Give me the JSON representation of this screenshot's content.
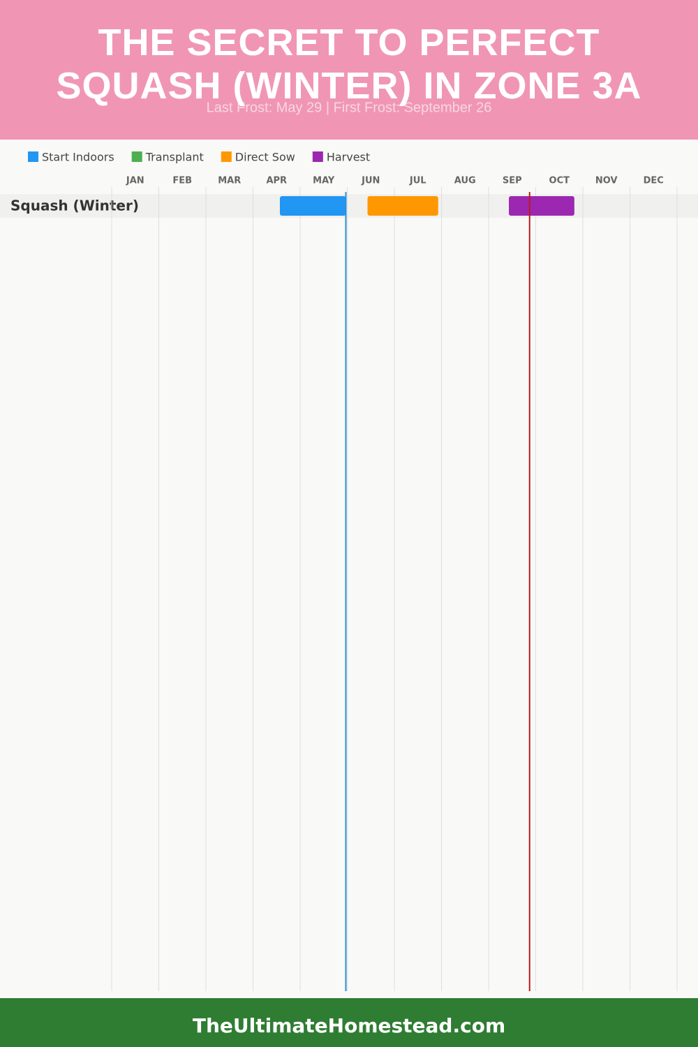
{
  "chart_data": {
    "type": "gantt",
    "title": "THE SECRET TO PERFECT SQUASH (WINTER) IN ZONE 3A",
    "subtitle": "Last Frost: May 29 | First Frost: September 26",
    "footer": "TheUltimateHomestead.com",
    "categories": [
      "Squash (Winter)"
    ],
    "xlim": [
      0,
      12
    ],
    "xticks": [
      {
        "value": 0.5,
        "label": "JAN"
      },
      {
        "value": 1.5,
        "label": "FEB"
      },
      {
        "value": 2.5,
        "label": "MAR"
      },
      {
        "value": 3.5,
        "label": "APR"
      },
      {
        "value": 4.5,
        "label": "MAY"
      },
      {
        "value": 5.5,
        "label": "JUN"
      },
      {
        "value": 6.5,
        "label": "JUL"
      },
      {
        "value": 7.5,
        "label": "AUG"
      },
      {
        "value": 8.5,
        "label": "SEP"
      },
      {
        "value": 9.5,
        "label": "OCT"
      },
      {
        "value": 10.5,
        "label": "NOV"
      },
      {
        "value": 11.5,
        "label": "DEC"
      }
    ],
    "grid": true,
    "series": [
      {
        "name": "Start Indoors",
        "color": "#2196f3",
        "values": [
          [
            3.57,
            4.97
          ]
        ]
      },
      {
        "name": "Transplant",
        "color": "#4caf50",
        "values": [
          null
        ]
      },
      {
        "name": "Direct Sow",
        "color": "#ff9800",
        "values": [
          [
            5.43,
            6.93
          ]
        ]
      },
      {
        "name": "Harvest",
        "color": "#9c27b0",
        "values": [
          [
            8.43,
            9.82
          ]
        ]
      }
    ],
    "frost_lines": [
      {
        "value": 4.97,
        "color": "#2b8fd6"
      },
      {
        "value": 8.87,
        "color": "#b71c1c"
      }
    ]
  }
}
